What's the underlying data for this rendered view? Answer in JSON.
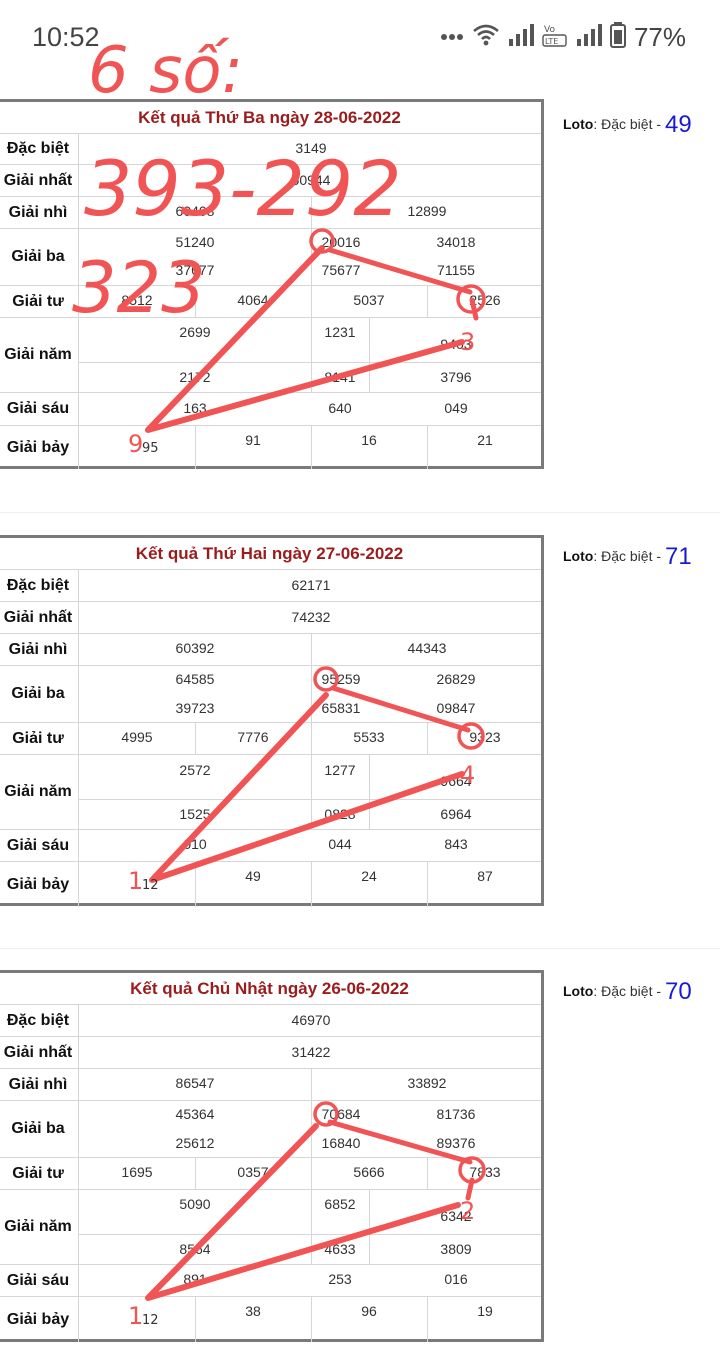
{
  "status": {
    "time": "10:52",
    "battery": "77%",
    "icons": [
      "more-dots-icon",
      "wifi-icon",
      "signal-icon",
      "volte-icon",
      "signal-icon",
      "battery-icon"
    ]
  },
  "colors": {
    "title": "#9b1c1c",
    "loto_value": "#1a1ad6",
    "ink": "#f15454"
  },
  "labels": [
    "Đặc biệt",
    "Giải nhất",
    "Giải nhì",
    "Giải ba",
    "Giải tư",
    "Giải năm",
    "Giải sáu",
    "Giải bảy"
  ],
  "loto_label": "Loto",
  "loto_text": ": Đặc biệt -",
  "tables": [
    {
      "title": "Kết quả Thứ Ba ngày 28-06-2022",
      "loto": "49",
      "dac_biet": "3149",
      "giai_nhat": "50944",
      "giai_nhi": [
        "60408",
        "12899"
      ],
      "giai_ba": [
        "51240",
        "20016",
        "34018",
        "37677",
        "75677",
        "71155"
      ],
      "giai_tu": [
        "8512",
        "4064",
        "5037",
        "2526"
      ],
      "giai_nam": [
        "2699",
        "1231",
        "9403",
        "2172",
        "8141",
        "3796"
      ],
      "giai_sau": [
        "163",
        "640",
        "049"
      ],
      "giai_bay": [
        "95",
        "91",
        "16",
        "21"
      ]
    },
    {
      "title": "Kết quả Thứ Hai ngày 27-06-2022",
      "loto": "71",
      "dac_biet": "62171",
      "giai_nhat": "74232",
      "giai_nhi": [
        "60392",
        "44343"
      ],
      "giai_ba": [
        "64585",
        "95259",
        "26829",
        "39723",
        "65831",
        "09847"
      ],
      "giai_tu": [
        "4995",
        "7776",
        "5533",
        "9323"
      ],
      "giai_nam": [
        "2572",
        "1277",
        "9664",
        "1525",
        "0828",
        "6964"
      ],
      "giai_sau": [
        "010",
        "044",
        "843"
      ],
      "giai_bay": [
        "12",
        "49",
        "24",
        "87"
      ]
    },
    {
      "title": "Kết quả Chủ Nhật ngày 26-06-2022",
      "loto": "70",
      "dac_biet": "46970",
      "giai_nhat": "31422",
      "giai_nhi": [
        "86547",
        "33892"
      ],
      "giai_ba": [
        "45364",
        "70684",
        "81736",
        "25612",
        "16840",
        "89376"
      ],
      "giai_tu": [
        "1695",
        "0357",
        "5666",
        "7833"
      ],
      "giai_nam": [
        "5090",
        "6852",
        "6342",
        "8564",
        "4633",
        "3809"
      ],
      "giai_sau": [
        "891",
        "253",
        "016"
      ],
      "giai_bay": [
        "12",
        "38",
        "96",
        "19"
      ]
    }
  ],
  "annotations": {
    "top_note": "6 số:",
    "big_pair": "393-292",
    "second": "323",
    "marks": [
      "3",
      "9",
      "4",
      "1",
      "2",
      "1"
    ]
  }
}
